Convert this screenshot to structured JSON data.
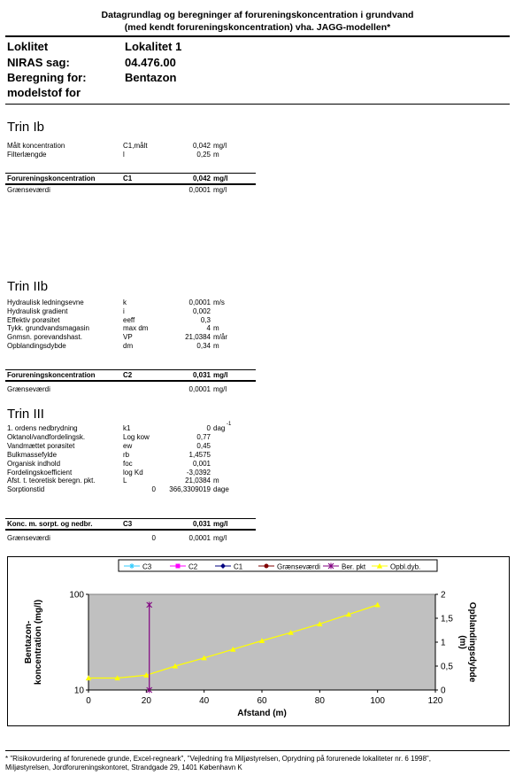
{
  "title": {
    "line1": "Datagrundlag og beregninger af forureningskoncentration i grundvand",
    "line2": "(med kendt forureningskoncentration) vha. JAGG-modellen*"
  },
  "header": {
    "rows": [
      {
        "label": "Loklitet",
        "value": "Lokalitet 1"
      },
      {
        "label": "NIRAS sag:",
        "value": "04.476.00"
      },
      {
        "label": "Beregning for:",
        "value": "Bentazon"
      },
      {
        "label": "modelstof for",
        "value": ""
      }
    ]
  },
  "trin_ib": {
    "title": "Trin Ib",
    "rows": [
      {
        "label": "Målt koncentration",
        "sym": "C1,målt",
        "val": "0,042",
        "unit": "mg/l"
      },
      {
        "label": "Filterlængde",
        "sym": "l",
        "val": "0,25",
        "unit": "m"
      }
    ],
    "result": {
      "label": "Forureningskoncentration",
      "sym": "C1",
      "val": "0,042",
      "unit": "mg/l"
    },
    "limit": {
      "label": "Grænseværdi",
      "val": "0,0001",
      "unit": "mg/l"
    }
  },
  "trin_iib": {
    "title": "Trin IIb",
    "rows": [
      {
        "label": "Hydraulisk ledningsevne",
        "sym": "k",
        "val": "0,0001",
        "unit": "m/s"
      },
      {
        "label": "Hydraulisk gradient",
        "sym": "i",
        "val": "0,002",
        "unit": ""
      },
      {
        "label": "Effektiv porøsitet",
        "sym": "eeff",
        "val": "0,3",
        "unit": ""
      },
      {
        "label": "Tykk. grundvandsmagasin",
        "sym": "max dm",
        "val": "4",
        "unit": "m"
      },
      {
        "label": "Gnmsn. porevandshast.",
        "sym": "VP",
        "val": "21,0384",
        "unit": "m/år"
      },
      {
        "label": "Opblandingsdybde",
        "sym": "dm",
        "val": "0,34",
        "unit": "m"
      }
    ],
    "result": {
      "label": "Forureningskoncentration",
      "sym": "C2",
      "val": "0,031",
      "unit": "mg/l"
    },
    "limit": {
      "label": "Grænseværdi",
      "val": "0,0001",
      "unit": "mg/l"
    }
  },
  "trin_iii": {
    "title": "Trin III",
    "rows": [
      {
        "label": "1. ordens nedbrydning",
        "sym": "k1",
        "pre": "",
        "val": "0",
        "unit": "dag",
        "sup": "-1"
      },
      {
        "label": "Oktanol/vandfordelingsk.",
        "sym": "Log kow",
        "pre": "",
        "val": "0,77",
        "unit": "",
        "sup": ""
      },
      {
        "label": "Vandmættet porøsitet",
        "sym": "ew",
        "pre": "",
        "val": "0,45",
        "unit": "",
        "sup": ""
      },
      {
        "label": "Bulkmassefylde",
        "sym": "rb",
        "pre": "",
        "val": "1,4575",
        "unit": "",
        "sup": ""
      },
      {
        "label": "Organisk indhold",
        "sym": "foc",
        "pre": "",
        "val": "0,001",
        "unit": "",
        "sup": ""
      },
      {
        "label": "Fordelingskoefficient",
        "sym": "log Kd",
        "pre": "",
        "val": "-3,0392",
        "unit": "",
        "sup": ""
      },
      {
        "label": "Afst. t. teoretisk beregn. pkt.",
        "sym": "L",
        "pre": "",
        "val": "21,0384",
        "unit": "m",
        "sup": ""
      },
      {
        "label": "Sorptionstid",
        "sym": "",
        "pre": "0",
        "val": "366,3309019",
        "unit": "dage",
        "sup": ""
      }
    ],
    "result": {
      "label": "Konc. m. sorpt. og nedbr.",
      "sym": "C3",
      "val": "0,031",
      "unit": "mg/l"
    },
    "limit": {
      "label": "Grænseværdi",
      "pre": "0",
      "val": "0,0001",
      "unit": "mg/l"
    }
  },
  "chart_data": {
    "type": "line",
    "legend": [
      "C3",
      "C2",
      "C1",
      "Grænseværdi",
      "Ber. pkt",
      "Opbl.dyb."
    ],
    "legend_colors": [
      "#33ccff",
      "#ff00ff",
      "#000080",
      "#800000",
      "#800080",
      "#ffff00"
    ],
    "legend_placement": "top",
    "xlabel": "Afstand (m)",
    "ylabel": "Bentazon-koncentration (mg/l)",
    "y2label": "Opblandingsdybde (m)",
    "xlim": [
      0,
      120
    ],
    "xticks": [
      "0",
      "20",
      "40",
      "60",
      "80",
      "100",
      "120"
    ],
    "ylim": [
      10,
      100
    ],
    "yscale": "log",
    "yticks": [
      "10",
      "100"
    ],
    "y2lim": [
      0,
      2
    ],
    "y2ticks": [
      "0",
      "0,5",
      "1",
      "1,5",
      "2"
    ],
    "plot_bg": "#c0c0c0",
    "series": [
      {
        "name": "Opbl.dyb.",
        "axis": "y2",
        "color": "#ffff00",
        "x": [
          0,
          10,
          20,
          30,
          40,
          50,
          60,
          70,
          80,
          90,
          100
        ],
        "y": [
          0.25,
          0.25,
          0.31,
          0.5,
          0.67,
          0.85,
          1.03,
          1.2,
          1.38,
          1.58,
          1.78
        ]
      },
      {
        "name": "Ber. pkt",
        "axis": "y2",
        "color": "#800080",
        "x": [
          21.0384,
          21.0384
        ],
        "y": [
          0,
          1.78
        ]
      }
    ]
  },
  "footer": {
    "line1": "* \"Risikovurdering af forurenede grunde, Excel-regneark\", \"Vejledning fra Miljøstyrelsen, Oprydning på forurenede lokaliteter nr. 6 1998\",",
    "line2": "Miljøstyrelsen, Jordforureningskontoret, Strandgade 29, 1401 København K"
  }
}
